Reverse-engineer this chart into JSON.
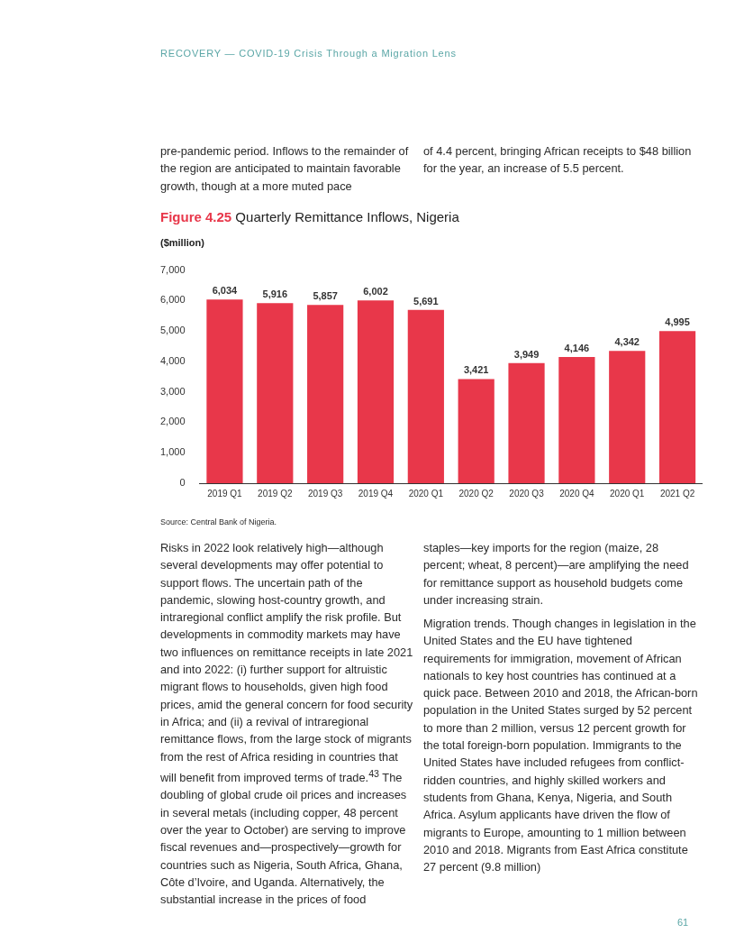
{
  "chart_data": {
    "type": "bar",
    "title": "Figure 4.25 Quarterly Remittance Inflows, Nigeria",
    "ylabel": "($million)",
    "categories": [
      "2019 Q1",
      "2019 Q2",
      "2019 Q3",
      "2019 Q4",
      "2020 Q1",
      "2020 Q2",
      "2020 Q3",
      "2020 Q4",
      "2020 Q1",
      "2021 Q2"
    ],
    "values": [
      6034,
      5916,
      5857,
      6002,
      5691,
      3421,
      3949,
      4146,
      4342,
      4995
    ],
    "value_labels": [
      "6,034",
      "5,916",
      "5,857",
      "6,002",
      "5,691",
      "3,421",
      "3,949",
      "4,146",
      "4,342",
      "4,995"
    ],
    "color": "#e8374a",
    "ylim": [
      0,
      7000
    ],
    "yticks": [
      0,
      {
        "value": 1000,
        "label": "1,000"
      },
      {
        "value": 2000,
        "label": "2,000"
      },
      {
        "value": 3000,
        "label": "3,000"
      },
      {
        "value": 4000,
        "label": "4,000"
      },
      {
        "value": 5000,
        "label": "5,000"
      },
      {
        "value": 6000,
        "label": "6,000"
      },
      {
        "value": 7000,
        "label": "7,000"
      }
    ],
    "grid": false,
    "legend": false,
    "annotations": [
      "RECOVERY — COVID-19 Crisis Through a Migration Lens",
      "pre-pandemic period. Inflows to the remainder of the region are anticipated to maintain favorable growth, though at a more muted pace",
      "of 4.4 percent, bringing African receipts to $48 billion for the year, an increase of 5.5 percent.",
      "Source: Central Bank of Nigeria.",
      "Risks in 2022 look relatively high—although several developments may offer potential to support flows. The uncertain path of the pandemic, slowing host-country growth, and intraregional conflict amplify the risk profile. But developments in commodity markets may have two influences on remittance receipts in late 2021 and into 2022: (i) further support for altruistic migrant flows to households, given high food prices, amid the general concern for food security in Africa; and (ii) a revival of intraregional remittance flows, from the large stock of migrants from the rest of Africa residing in countries that will benefit from improved terms of trade.$^{43}$ The doubling of global crude oil prices and increases in several metals (including copper, 48 percent over the year to October) are serving to improve fiscal revenues and—prospectively—growth for countries such as Nigeria, South Africa, Ghana, Côte d’Ivoire, and Uganda. Alternatively, the substantial increase in the prices of food",
      "staples—key imports for the region (maize, 28 percent; wheat, 8 percent)—are amplifying the need for remittance support as household budgets come under increasing strain.",
      "Migration trends. Though changes in legislation in the United States and the EU have tightened requirements for immigration, movement of African nationals to key host countries has continued at a quick pace. Between 2010 and 2018, the African-born population in the United States surged by 52 percent to more than 2 million, versus 12 percent growth for the total foreign-born population. Immigrants to the United States have included refugees from conflict-ridden countries, and highly skilled workers and students from Ghana, Kenya, Nigeria, and South Africa. Asylum applicants have driven the flow of migrants to Europe, amounting to 1 million between 2010 and 2018. Migrants from East Africa constitute 27 percent (9.8 million)",
      "61"
    ]
  }
}
